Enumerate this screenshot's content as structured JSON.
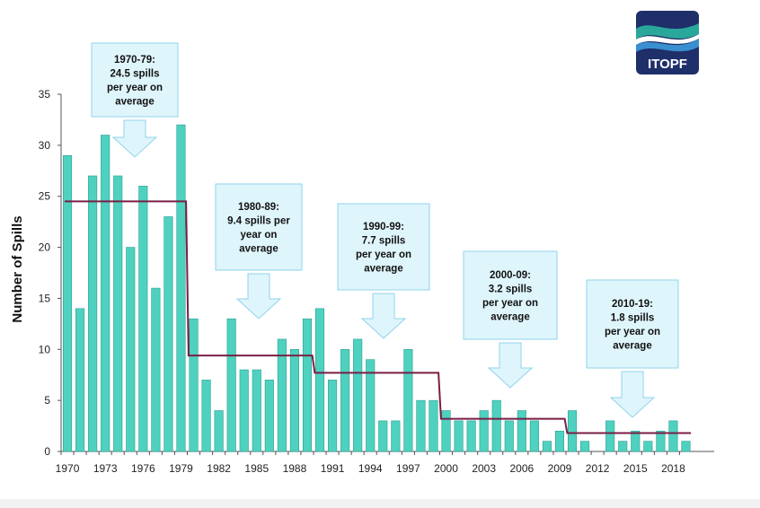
{
  "logo": {
    "text": "ITOPF",
    "colors": {
      "navy": "#1e2f6a",
      "teal": "#2aa79b",
      "blue": "#3a8fd0"
    }
  },
  "colors": {
    "bar_fill": "#4fd1c0",
    "bar_stroke": "#2a9e90",
    "average_line": "#7a1f45",
    "callout_fill": "#dff5fc",
    "callout_stroke": "#8fd3ec",
    "axis": "#555555"
  },
  "chart_data": {
    "type": "bar",
    "ylabel": "Number of Spills",
    "xlabel": "",
    "ylim": [
      0,
      35
    ],
    "yticks": [
      0,
      5,
      10,
      15,
      20,
      25,
      30,
      35
    ],
    "xtick_labels": [
      "1970",
      "1973",
      "1976",
      "1979",
      "1982",
      "1985",
      "1988",
      "1991",
      "1994",
      "1997",
      "2000",
      "2003",
      "2006",
      "2009",
      "2012",
      "2015",
      "2018"
    ],
    "categories": [
      1970,
      1971,
      1972,
      1973,
      1974,
      1975,
      1976,
      1977,
      1978,
      1979,
      1980,
      1981,
      1982,
      1983,
      1984,
      1985,
      1986,
      1987,
      1988,
      1989,
      1990,
      1991,
      1992,
      1993,
      1994,
      1995,
      1996,
      1997,
      1998,
      1999,
      2000,
      2001,
      2002,
      2003,
      2004,
      2005,
      2006,
      2007,
      2008,
      2009,
      2010,
      2011,
      2012,
      2013,
      2014,
      2015,
      2016,
      2017,
      2018,
      2019
    ],
    "values": [
      29,
      14,
      27,
      31,
      27,
      20,
      26,
      16,
      23,
      32,
      13,
      7,
      4,
      13,
      8,
      8,
      7,
      11,
      10,
      13,
      14,
      7,
      10,
      11,
      9,
      3,
      3,
      10,
      5,
      5,
      4,
      3,
      3,
      4,
      5,
      3,
      4,
      3,
      1,
      2,
      4,
      1,
      0,
      3,
      1,
      2,
      1,
      2,
      3,
      1
    ],
    "averages": [
      {
        "start": 1970,
        "end": 1979,
        "value": 24.5,
        "label_lines": [
          "1970-79:",
          "24.5 spills",
          "per year on",
          "average"
        ]
      },
      {
        "start": 1980,
        "end": 1989,
        "value": 9.4,
        "label_lines": [
          "1980-89:",
          "9.4 spills per",
          "year on",
          "average"
        ]
      },
      {
        "start": 1990,
        "end": 1999,
        "value": 7.7,
        "label_lines": [
          "1990-99:",
          "7.7 spills",
          "per year on",
          "average"
        ]
      },
      {
        "start": 2000,
        "end": 2009,
        "value": 3.2,
        "label_lines": [
          "2000-09:",
          "3.2 spills",
          "per year on",
          "average"
        ]
      },
      {
        "start": 2010,
        "end": 2019,
        "value": 1.8,
        "label_lines": [
          "2010-19:",
          "1.8 spills",
          "per year on",
          "average"
        ]
      }
    ]
  }
}
